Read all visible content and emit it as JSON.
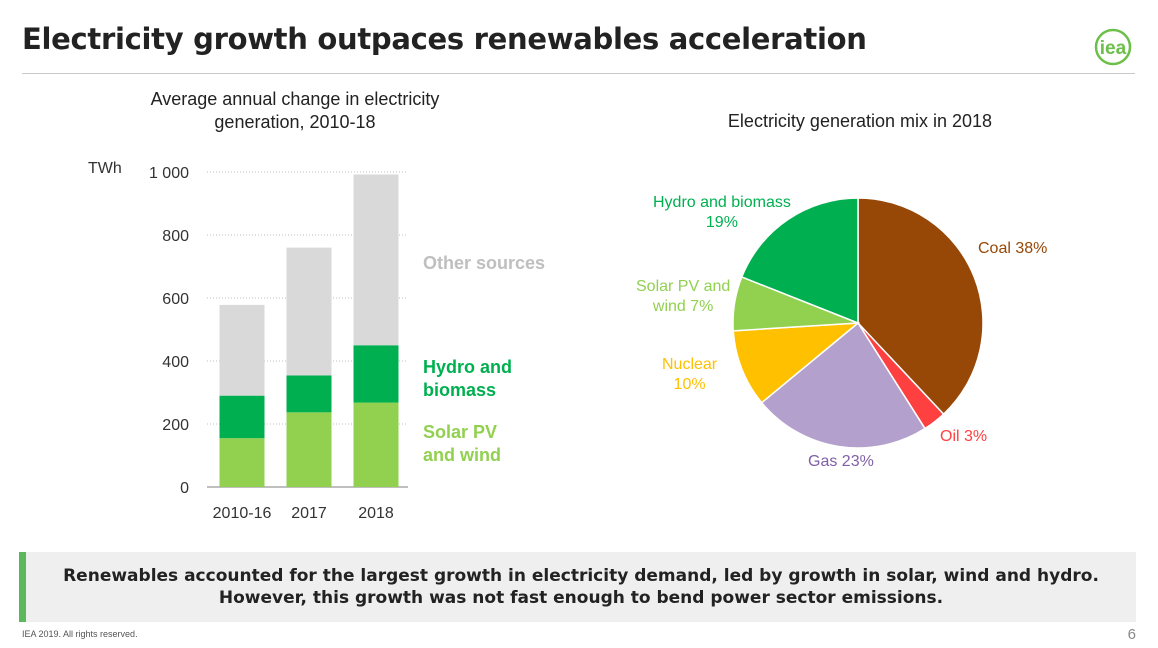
{
  "slide": {
    "title": "Electricity growth outpaces renewables acceleration",
    "logo_text": "iea",
    "callout_line1": "Renewables accounted for the largest growth in electricity demand, led by growth in solar, wind and hydro.",
    "callout_line2": "However, this growth was not fast enough to bend power sector emissions.",
    "footer": "IEA 2019. All rights reserved.",
    "page_number": "6"
  },
  "colors": {
    "solar_wind": "#92d050",
    "hydro": "#00b050",
    "other": "#d9d9d9",
    "coal": "#974706",
    "oil": "#ff4040",
    "gas": "#b4a0cc",
    "nuclear": "#ffc000",
    "accent": "#5cb85c"
  },
  "chart_data": [
    {
      "type": "bar",
      "stacked": true,
      "title": "Average annual change in electricity generation, 2010-18",
      "ylabel": "TWh",
      "ylim": [
        0,
        1000
      ],
      "yticks": [
        0,
        200,
        400,
        600,
        800,
        1000
      ],
      "ytick_labels": [
        "0",
        "200",
        "400",
        "600",
        "800",
        "1 000"
      ],
      "categories": [
        "2010-16",
        "2017",
        "2018"
      ],
      "grid": true,
      "series": [
        {
          "name": "Solar PV and wind",
          "label_lines": [
            "Solar PV",
            "and wind"
          ],
          "values": [
            155,
            237,
            268
          ]
        },
        {
          "name": "Hydro and biomass",
          "label_lines": [
            "Hydro and",
            "biomass"
          ],
          "values": [
            135,
            117,
            182
          ]
        },
        {
          "name": "Other sources",
          "label_lines": [
            "Other sources"
          ],
          "values": [
            288,
            406,
            542
          ]
        }
      ]
    },
    {
      "type": "pie",
      "title": "Electricity generation mix in 2018",
      "slices": [
        {
          "name": "Coal",
          "value": 38,
          "label_lines": [
            "Coal 38%"
          ]
        },
        {
          "name": "Oil",
          "value": 3,
          "label_lines": [
            "Oil 3%"
          ]
        },
        {
          "name": "Gas",
          "value": 23,
          "label_lines": [
            "Gas 23%"
          ]
        },
        {
          "name": "Nuclear",
          "value": 10,
          "label_lines": [
            "Nuclear",
            "10%"
          ]
        },
        {
          "name": "Solar PV and wind",
          "value": 7,
          "label_lines": [
            "Solar PV and",
            "wind 7%"
          ]
        },
        {
          "name": "Hydro and biomass",
          "value": 19,
          "label_lines": [
            "Hydro and biomass",
            "19%"
          ]
        }
      ]
    }
  ]
}
